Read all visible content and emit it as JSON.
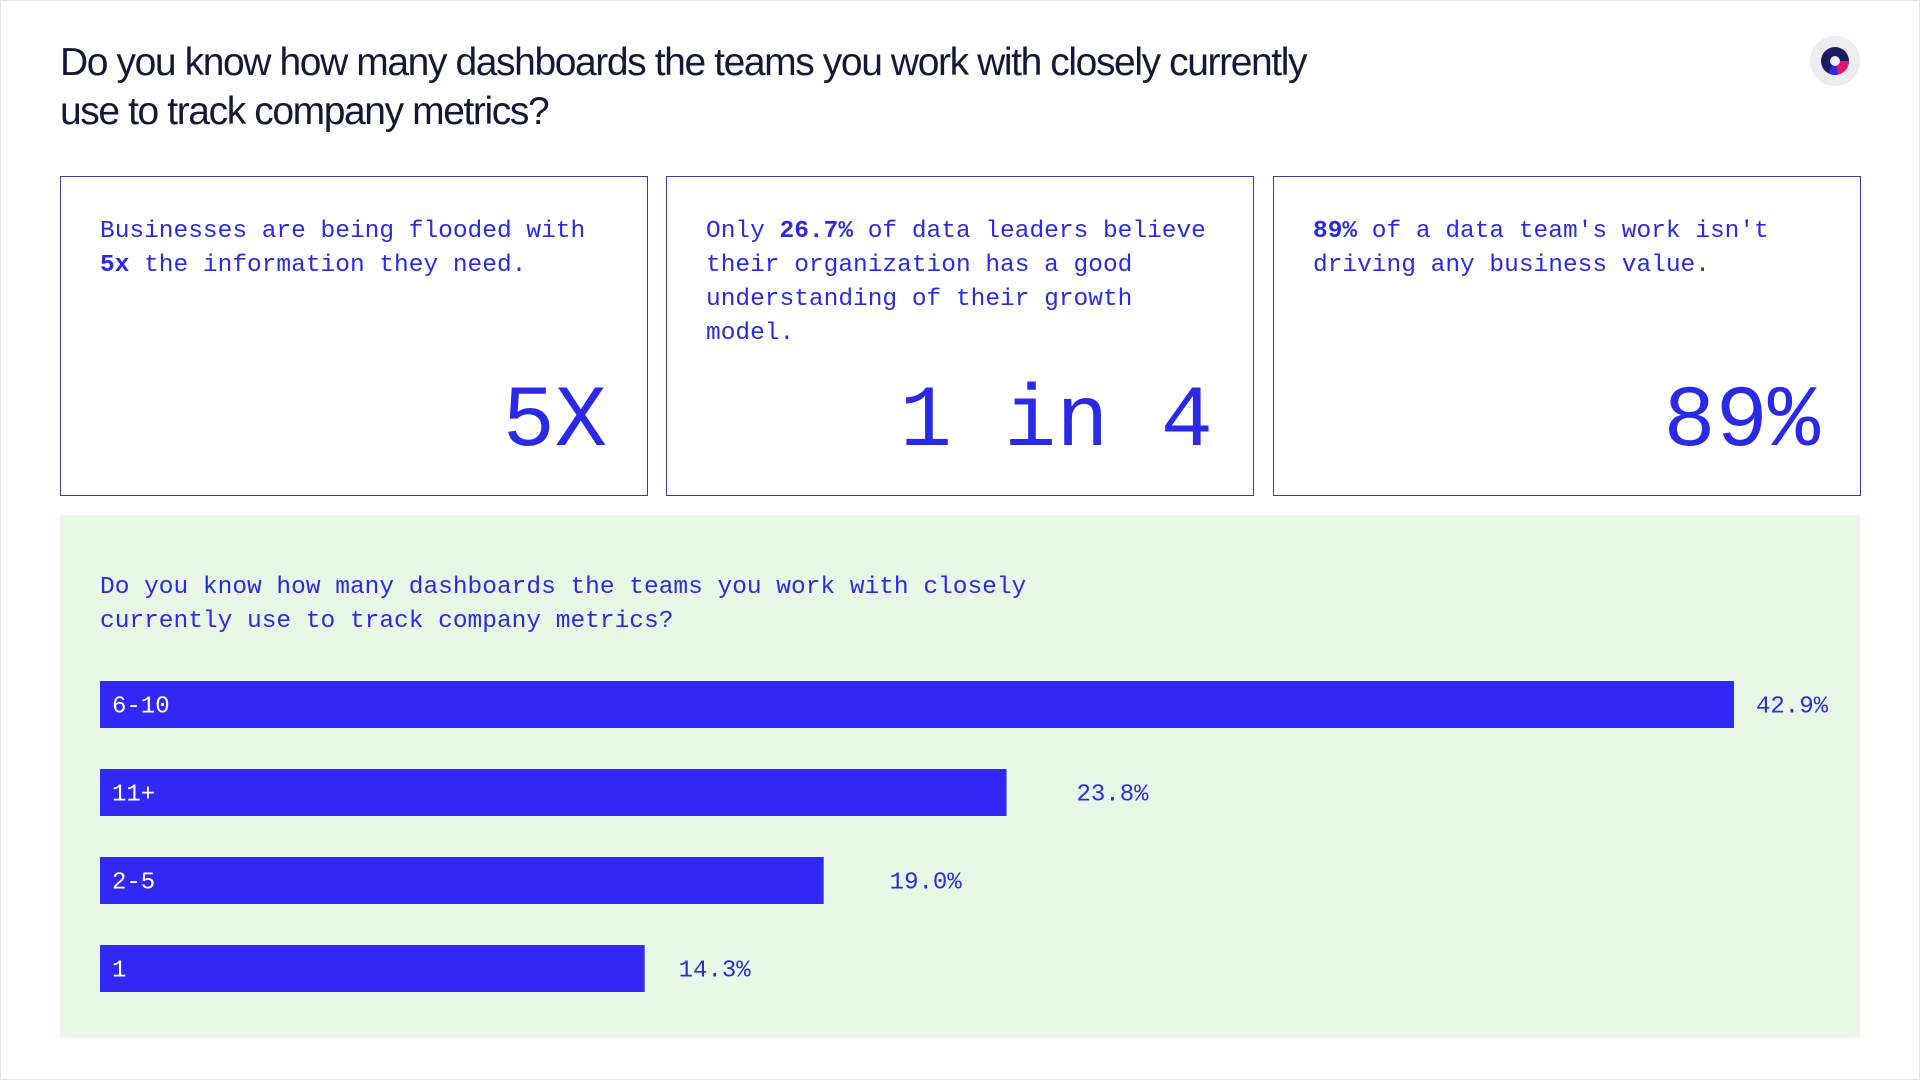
{
  "page": {
    "title": "Do you know how many dashboards the teams you work with closely currently use to track company metrics?"
  },
  "logo": {
    "icon": "brand-logo-icon",
    "colors": [
      "#1d1a5e",
      "#e3156b",
      "#2a2ae6"
    ]
  },
  "colors": {
    "accent": "#2a2ae6",
    "bar": "#3228f5",
    "panel_bg": "#e9f8e6",
    "title": "#161638"
  },
  "cards": [
    {
      "text_parts": [
        {
          "text": "Businesses are being flooded with ",
          "bold": false
        },
        {
          "text": "5x",
          "bold": true
        },
        {
          "text": " the information they need.",
          "bold": false
        }
      ],
      "stat": "5X"
    },
    {
      "text_parts": [
        {
          "text": "Only ",
          "bold": false
        },
        {
          "text": "26.7%",
          "bold": true
        },
        {
          "text": " of data leaders believe their organization has a good understanding of their growth model.",
          "bold": false
        }
      ],
      "stat": "1 in 4"
    },
    {
      "text_parts": [
        {
          "text": "89%",
          "bold": true
        },
        {
          "text": " of a data team's work isn't driving any business value.",
          "bold": false
        }
      ],
      "stat": "89%"
    }
  ],
  "chart_data": {
    "type": "bar",
    "orientation": "horizontal",
    "title": "Do you know how many dashboards the teams you work with closely currently use to track company metrics?",
    "categories": [
      "6-10",
      "11+",
      "2-5",
      "1"
    ],
    "values": [
      42.9,
      23.8,
      19.0,
      14.3
    ],
    "value_labels": [
      "42.9%",
      "23.8%",
      "19.0%",
      "14.3%"
    ],
    "unit": "%",
    "grid": false,
    "legend": "none"
  }
}
